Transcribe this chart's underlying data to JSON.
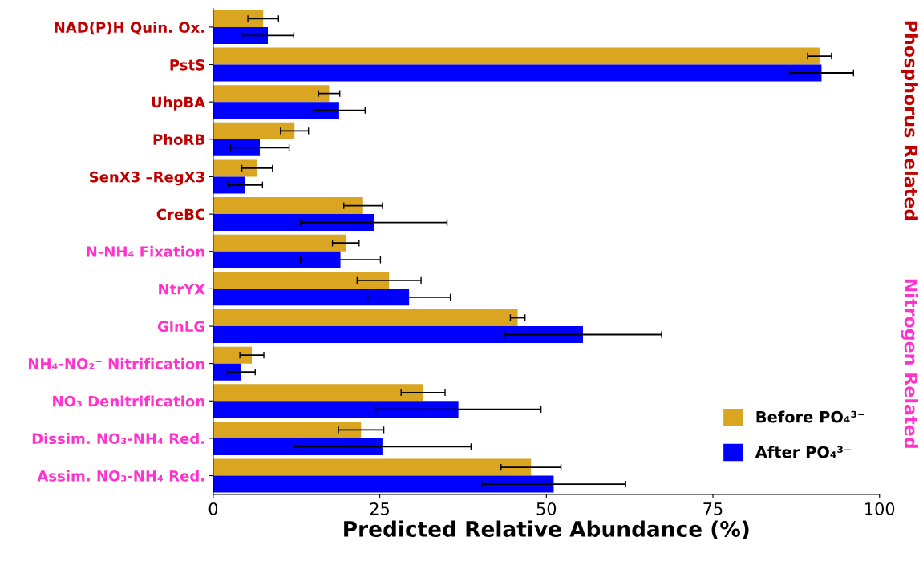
{
  "chart_data": {
    "type": "bar",
    "orientation": "horizontal",
    "xlabel": "Predicted Relative Abundance (%)",
    "categories": [
      "NAD(P)H Quin. Ox.",
      "PstS",
      "UhpBA",
      "PhoRB",
      "SenX3 –RegX3",
      "CreBC",
      "N-NH₄ Fixation",
      "NtrYX",
      "GlnLG",
      "NH₄-NO₂⁻ Nitrification",
      "NO₃ Denitrification",
      "Dissim. NO₃-NH₄ Red.",
      "Assim. NO₃-NH₄ Red."
    ],
    "series": [
      {
        "name": "Before PO₄³⁻",
        "color": "#daa520",
        "values": [
          7.5,
          91.0,
          17.4,
          12.2,
          6.6,
          22.5,
          19.9,
          26.4,
          45.7,
          5.8,
          31.5,
          22.2,
          47.7
        ],
        "errors": [
          2.3,
          1.8,
          1.6,
          2.1,
          2.3,
          2.9,
          2.0,
          4.8,
          1.1,
          1.8,
          3.3,
          3.4,
          4.5
        ]
      },
      {
        "name": "After PO₄³⁻",
        "color": "#0000ff",
        "values": [
          8.2,
          91.3,
          18.9,
          7.0,
          4.8,
          24.1,
          19.1,
          29.4,
          55.5,
          4.2,
          36.8,
          25.4,
          51.1
        ],
        "errors": [
          3.9,
          4.8,
          3.9,
          4.4,
          2.6,
          11.0,
          6.0,
          6.2,
          11.8,
          2.1,
          12.4,
          13.3,
          10.8
        ]
      }
    ],
    "xlim": [
      0,
      100
    ],
    "xticks": [
      0,
      25,
      50,
      75,
      100
    ],
    "annotations": [
      "Phosphorus Related",
      "Nitrogen Related"
    ],
    "grid": false,
    "legend": "bottom right"
  }
}
